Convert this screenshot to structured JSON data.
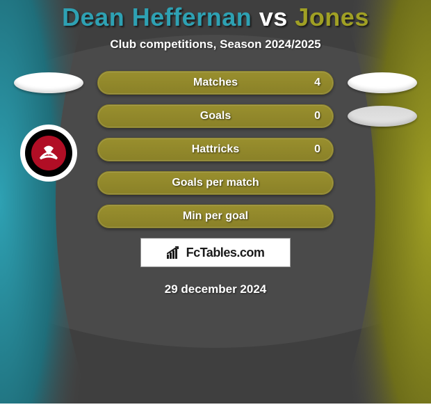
{
  "title": {
    "part1": "Dean Heffernan",
    "vs": "vs",
    "part2": "Jones"
  },
  "title_colors": {
    "part1": "#2ea1b3",
    "vs": "#ffffff",
    "part2": "#a0a024"
  },
  "subtitle": "Club competitions, Season 2024/2025",
  "background_color": "#4a4a4a",
  "left_accent": "#2ea1b3",
  "right_accent": "#a0a024",
  "pill_bg": "#998f2e",
  "pill_bg_dark": "#8a8128",
  "rows": [
    {
      "label": "Matches",
      "left": "",
      "right": "4"
    },
    {
      "label": "Goals",
      "left": "",
      "right": "0"
    },
    {
      "label": "Hattricks",
      "left": "",
      "right": "0"
    },
    {
      "label": "Goals per match",
      "left": "",
      "right": ""
    },
    {
      "label": "Min per goal",
      "left": "",
      "right": ""
    }
  ],
  "footer_brand": "FcTables.com",
  "date": "29 december 2024",
  "badge": {
    "outer": "#ffffff",
    "mid": "#000000",
    "inner": "#b10e25"
  }
}
